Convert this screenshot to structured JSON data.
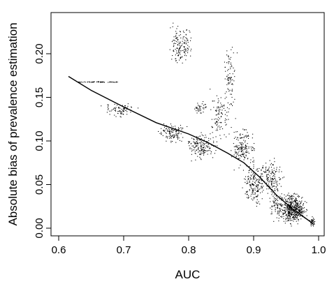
{
  "chart_data": {
    "type": "scatter",
    "title": "",
    "xlabel": "AUC",
    "ylabel": "Absolute bias of prevalence estimation",
    "xlim": [
      0.6,
      1.0
    ],
    "ylim": [
      0.0,
      0.24
    ],
    "x_ticks": [
      0.6,
      0.7,
      0.8,
      0.9,
      1.0
    ],
    "x_tick_labels": [
      "0.6",
      "0.7",
      "0.8",
      "0.9",
      "1.0"
    ],
    "y_ticks": [
      0.0,
      0.05,
      0.1,
      0.15,
      0.2
    ],
    "y_tick_labels": [
      "0.00",
      "0.05",
      "0.10",
      "0.15",
      "0.20"
    ],
    "grid": false,
    "legend": "none",
    "point_color": "#000000",
    "trend_line": {
      "x": [
        0.615,
        0.65,
        0.7,
        0.75,
        0.8,
        0.83,
        0.86,
        0.885,
        0.91,
        0.935,
        0.96,
        0.99
      ],
      "y": [
        0.174,
        0.158,
        0.139,
        0.121,
        0.108,
        0.098,
        0.086,
        0.075,
        0.058,
        0.038,
        0.022,
        0.006
      ]
    },
    "point_clusters": [
      {
        "x": [
          0.625,
          0.69
        ],
        "y": [
          0.166,
          0.17
        ],
        "n": 60
      },
      {
        "x": [
          0.66,
          0.73
        ],
        "y": [
          0.125,
          0.147
        ],
        "n": 80
      },
      {
        "x": [
          0.745,
          0.8
        ],
        "y": [
          0.095,
          0.125
        ],
        "n": 120
      },
      {
        "x": [
          0.765,
          0.81
        ],
        "y": [
          0.18,
          0.24
        ],
        "n": 150
      },
      {
        "x": [
          0.79,
          0.85
        ],
        "y": [
          0.075,
          0.115
        ],
        "n": 170
      },
      {
        "x": [
          0.805,
          0.83
        ],
        "y": [
          0.13,
          0.147
        ],
        "n": 40
      },
      {
        "x": [
          0.82,
          0.875
        ],
        "y": [
          0.09,
          0.165
        ],
        "n": 110
      },
      {
        "x": [
          0.85,
          0.875
        ],
        "y": [
          0.13,
          0.22
        ],
        "n": 80
      },
      {
        "x": [
          0.86,
          0.905
        ],
        "y": [
          0.06,
          0.125
        ],
        "n": 170
      },
      {
        "x": [
          0.88,
          0.92
        ],
        "y": [
          0.02,
          0.08
        ],
        "n": 180
      },
      {
        "x": [
          0.9,
          0.95
        ],
        "y": [
          0.03,
          0.085
        ],
        "n": 160
      },
      {
        "x": [
          0.92,
          0.95
        ],
        "y": [
          0.0,
          0.05
        ],
        "n": 80
      },
      {
        "x": [
          0.935,
          0.985
        ],
        "y": [
          0.0,
          0.045
        ],
        "n": 500
      },
      {
        "x": [
          0.985,
          0.995
        ],
        "y": [
          0.0,
          0.015
        ],
        "n": 40
      }
    ]
  }
}
